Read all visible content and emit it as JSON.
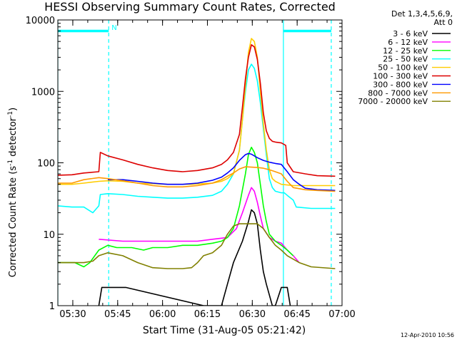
{
  "chart_data": {
    "type": "line",
    "title": "HESSI Observing Summary Count Rates, Corrected",
    "xlabel": "Start Time (31-Aug-05 05:21:42)",
    "ylabel_main": "Corrected Count Rate (s",
    "ylabel_sup1": "-1",
    "ylabel_mid": " detector",
    "ylabel_sup2": "-1",
    "ylabel_end": ")",
    "footer": "12-Apr-2010 10:56",
    "legend_header_1": "Det 1,3,4,5,6,9,",
    "legend_header_2": "Att 0",
    "y_scale": "log",
    "ylim": [
      1,
      10000
    ],
    "y_ticks": [
      {
        "v": 1,
        "label": "1"
      },
      {
        "v": 10,
        "label": "10"
      },
      {
        "v": 100,
        "label": "100"
      },
      {
        "v": 1000,
        "label": "1000"
      },
      {
        "v": 10000,
        "label": "10000"
      }
    ],
    "x_range_min": [
      3.3,
      98.3
    ],
    "x_ticks": [
      {
        "v": 8.3,
        "label": "05:30"
      },
      {
        "v": 23.3,
        "label": "05:45"
      },
      {
        "v": 38.3,
        "label": "06:00"
      },
      {
        "v": 53.3,
        "label": "06:15"
      },
      {
        "v": 68.3,
        "label": "06:30"
      },
      {
        "v": 83.3,
        "label": "06:45"
      },
      {
        "v": 98.3,
        "label": "07:00"
      }
    ],
    "markers": {
      "solid_lines_min": [
        3.3,
        78.7
      ],
      "dashed_lines_min": [
        20.3,
        94.7
      ],
      "night_label": "N",
      "night_label_at_min": 20.3,
      "color": "#00ffff"
    },
    "legend_placement": "right",
    "series": [
      {
        "name": "3 - 6 keV",
        "color": "#000000",
        "points": [
          [
            17,
            1
          ],
          [
            18,
            1.8
          ],
          [
            26,
            1.8
          ],
          [
            52,
            1
          ],
          [
            58,
            1
          ],
          [
            60,
            2
          ],
          [
            62,
            4
          ],
          [
            65,
            8
          ],
          [
            67,
            15
          ],
          [
            68,
            22
          ],
          [
            69,
            20
          ],
          [
            70,
            14
          ],
          [
            71,
            6
          ],
          [
            72,
            3
          ],
          [
            73,
            2
          ],
          [
            75,
            1
          ],
          [
            76,
            1
          ],
          [
            78,
            1.8
          ],
          [
            80,
            1.8
          ],
          [
            81,
            1
          ]
        ]
      },
      {
        "name": "6 - 12 keV",
        "color": "#ff00ff",
        "points": [
          [
            17,
            8.5
          ],
          [
            25,
            8
          ],
          [
            30,
            8
          ],
          [
            40,
            8
          ],
          [
            50,
            8
          ],
          [
            55,
            8.5
          ],
          [
            60,
            9
          ],
          [
            63,
            12
          ],
          [
            65,
            20
          ],
          [
            67,
            35
          ],
          [
            68,
            45
          ],
          [
            69,
            40
          ],
          [
            70,
            28
          ],
          [
            71,
            18
          ],
          [
            72,
            12
          ],
          [
            74,
            9
          ],
          [
            76,
            8
          ],
          [
            78,
            7.5
          ],
          [
            80,
            6
          ],
          [
            82,
            5
          ],
          [
            84,
            4
          ]
        ]
      },
      {
        "name": "12 - 25 keV",
        "color": "#00ff00",
        "points": [
          [
            3.3,
            4
          ],
          [
            9,
            4
          ],
          [
            12,
            3.5
          ],
          [
            14,
            4
          ],
          [
            17,
            6
          ],
          [
            20,
            7
          ],
          [
            23,
            6.5
          ],
          [
            28,
            6.5
          ],
          [
            32,
            6
          ],
          [
            35,
            6.5
          ],
          [
            40,
            6.5
          ],
          [
            45,
            7
          ],
          [
            50,
            7
          ],
          [
            55,
            7.5
          ],
          [
            58,
            8
          ],
          [
            60,
            9
          ],
          [
            62,
            12
          ],
          [
            64,
            25
          ],
          [
            66,
            70
          ],
          [
            67,
            130
          ],
          [
            68,
            165
          ],
          [
            69,
            140
          ],
          [
            70,
            100
          ],
          [
            71,
            50
          ],
          [
            72,
            25
          ],
          [
            73,
            15
          ],
          [
            74,
            10
          ],
          [
            76,
            8
          ],
          [
            78,
            7
          ],
          [
            80,
            6
          ],
          [
            82,
            5
          ]
        ]
      },
      {
        "name": "25 - 50 keV",
        "color": "#00ffff",
        "points": [
          [
            3.3,
            25
          ],
          [
            8,
            24
          ],
          [
            12,
            24
          ],
          [
            15,
            20
          ],
          [
            17,
            25
          ],
          [
            17.5,
            36
          ],
          [
            20,
            37
          ],
          [
            25,
            36
          ],
          [
            30,
            34
          ],
          [
            35,
            33
          ],
          [
            40,
            32
          ],
          [
            45,
            32
          ],
          [
            50,
            33
          ],
          [
            55,
            35
          ],
          [
            58,
            40
          ],
          [
            60,
            50
          ],
          [
            62,
            70
          ],
          [
            64,
            150
          ],
          [
            65,
            400
          ],
          [
            66,
            1000
          ],
          [
            67,
            2000
          ],
          [
            68,
            2400
          ],
          [
            69,
            2100
          ],
          [
            70,
            1400
          ],
          [
            71,
            700
          ],
          [
            72,
            300
          ],
          [
            73,
            130
          ],
          [
            74,
            60
          ],
          [
            75,
            45
          ],
          [
            76,
            40
          ],
          [
            78,
            38
          ],
          [
            79,
            38
          ],
          [
            80,
            35
          ],
          [
            82,
            30
          ],
          [
            83,
            24
          ],
          [
            88,
            23
          ],
          [
            96,
            23
          ]
        ]
      },
      {
        "name": "50 - 100 keV",
        "color": "#ffcc00",
        "points": [
          [
            3.3,
            50
          ],
          [
            8,
            50
          ],
          [
            12,
            52
          ],
          [
            17,
            55
          ],
          [
            20,
            56
          ],
          [
            25,
            55
          ],
          [
            30,
            52
          ],
          [
            40,
            50
          ],
          [
            48,
            50
          ],
          [
            55,
            52
          ],
          [
            58,
            55
          ],
          [
            60,
            60
          ],
          [
            62,
            70
          ],
          [
            64,
            150
          ],
          [
            65,
            400
          ],
          [
            66,
            1200
          ],
          [
            67,
            3500
          ],
          [
            68,
            5500
          ],
          [
            69,
            5000
          ],
          [
            70,
            3000
          ],
          [
            71,
            1000
          ],
          [
            72,
            350
          ],
          [
            73,
            150
          ],
          [
            74,
            80
          ],
          [
            75,
            60
          ],
          [
            76,
            55
          ],
          [
            78,
            50
          ],
          [
            82,
            48
          ],
          [
            86,
            48
          ],
          [
            92,
            48
          ],
          [
            96,
            48
          ]
        ]
      },
      {
        "name": "100 - 300 keV",
        "color": "#dd0000",
        "points": [
          [
            3.3,
            67
          ],
          [
            8,
            68
          ],
          [
            12,
            72
          ],
          [
            17,
            75
          ],
          [
            17.5,
            140
          ],
          [
            20,
            125
          ],
          [
            25,
            110
          ],
          [
            30,
            95
          ],
          [
            35,
            85
          ],
          [
            40,
            78
          ],
          [
            45,
            75
          ],
          [
            50,
            78
          ],
          [
            55,
            85
          ],
          [
            58,
            95
          ],
          [
            60,
            110
          ],
          [
            62,
            140
          ],
          [
            64,
            250
          ],
          [
            65,
            600
          ],
          [
            66,
            1500
          ],
          [
            67,
            3000
          ],
          [
            68,
            4500
          ],
          [
            69,
            4200
          ],
          [
            70,
            2800
          ],
          [
            71,
            1300
          ],
          [
            72,
            500
          ],
          [
            73,
            280
          ],
          [
            74,
            220
          ],
          [
            75,
            200
          ],
          [
            76,
            195
          ],
          [
            78,
            190
          ],
          [
            79.5,
            175
          ],
          [
            80,
            100
          ],
          [
            82,
            75
          ],
          [
            86,
            70
          ],
          [
            90,
            66
          ],
          [
            96,
            65
          ]
        ]
      },
      {
        "name": "300 - 800 keV",
        "color": "#0000ff",
        "points": [
          [
            20,
            58
          ],
          [
            25,
            58
          ],
          [
            30,
            55
          ],
          [
            35,
            52
          ],
          [
            40,
            50
          ],
          [
            45,
            50
          ],
          [
            50,
            52
          ],
          [
            55,
            57
          ],
          [
            58,
            63
          ],
          [
            60,
            72
          ],
          [
            62,
            85
          ],
          [
            64,
            108
          ],
          [
            66,
            130
          ],
          [
            67,
            135
          ],
          [
            68,
            132
          ],
          [
            69,
            125
          ],
          [
            70,
            118
          ],
          [
            72,
            108
          ],
          [
            74,
            102
          ],
          [
            76,
            98
          ],
          [
            78,
            95
          ],
          [
            80,
            75
          ],
          [
            82,
            58
          ],
          [
            84,
            50
          ],
          [
            86,
            44
          ],
          [
            90,
            42
          ],
          [
            96,
            41
          ]
        ]
      },
      {
        "name": "800 - 7000 keV",
        "color": "#ff9900",
        "points": [
          [
            3.3,
            52
          ],
          [
            8,
            52
          ],
          [
            12,
            58
          ],
          [
            17,
            62
          ],
          [
            20,
            60
          ],
          [
            25,
            56
          ],
          [
            30,
            52
          ],
          [
            35,
            48
          ],
          [
            40,
            46
          ],
          [
            45,
            46
          ],
          [
            50,
            48
          ],
          [
            55,
            52
          ],
          [
            58,
            58
          ],
          [
            60,
            65
          ],
          [
            62,
            72
          ],
          [
            64,
            82
          ],
          [
            66,
            88
          ],
          [
            68,
            87
          ],
          [
            70,
            86
          ],
          [
            72,
            84
          ],
          [
            74,
            80
          ],
          [
            76,
            75
          ],
          [
            78,
            70
          ],
          [
            80,
            55
          ],
          [
            82,
            45
          ],
          [
            86,
            42
          ],
          [
            90,
            41
          ],
          [
            96,
            40
          ]
        ]
      },
      {
        "name": "7000 - 20000 keV",
        "color": "#808000",
        "points": [
          [
            3.3,
            4
          ],
          [
            8,
            4
          ],
          [
            12,
            4
          ],
          [
            15,
            4.2
          ],
          [
            17,
            5
          ],
          [
            20,
            5.5
          ],
          [
            25,
            5
          ],
          [
            30,
            4
          ],
          [
            35,
            3.4
          ],
          [
            40,
            3.3
          ],
          [
            45,
            3.3
          ],
          [
            48,
            3.4
          ],
          [
            50,
            4
          ],
          [
            52,
            5
          ],
          [
            55,
            5.5
          ],
          [
            58,
            7
          ],
          [
            60,
            10
          ],
          [
            62,
            13
          ],
          [
            64,
            14
          ],
          [
            66,
            14
          ],
          [
            68,
            14
          ],
          [
            70,
            14
          ],
          [
            72,
            12
          ],
          [
            74,
            9
          ],
          [
            76,
            7
          ],
          [
            78,
            6
          ],
          [
            80,
            5
          ],
          [
            84,
            4
          ],
          [
            88,
            3.5
          ],
          [
            96,
            3.3
          ]
        ]
      }
    ]
  }
}
